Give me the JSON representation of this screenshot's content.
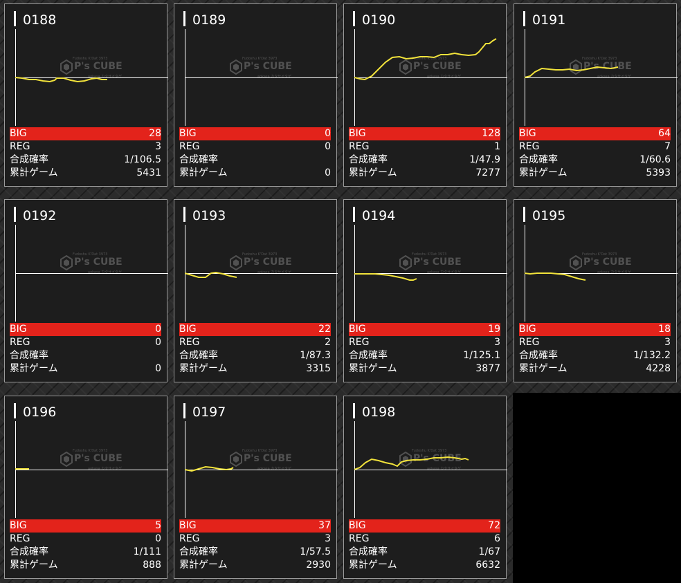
{
  "labels": {
    "big": "BIG",
    "reg": "REG",
    "rate": "合成確率",
    "games": "累計ゲーム"
  },
  "watermark": {
    "top": "Fudoshu K'Dat 3973",
    "logo": "P's CUBE",
    "bottom": "aokasa カタサイタゲ"
  },
  "colors": {
    "big_bar": "#e3231b",
    "line": "#f2e33b",
    "card_bg": "#1d1d1d",
    "border": "#9a9a9a"
  },
  "machines": [
    {
      "number": "0188",
      "big": "28",
      "reg": "3",
      "rate": "1/106.5",
      "games": "5431",
      "trend": [
        [
          0,
          0
        ],
        [
          10,
          -1
        ],
        [
          20,
          -3
        ],
        [
          30,
          -3
        ],
        [
          40,
          -5
        ],
        [
          50,
          -6
        ],
        [
          57,
          -4
        ],
        [
          60,
          -1
        ],
        [
          70,
          -1
        ],
        [
          80,
          -4
        ],
        [
          90,
          -6
        ],
        [
          100,
          -5
        ],
        [
          110,
          -2
        ],
        [
          118,
          -1
        ],
        [
          125,
          -3
        ],
        [
          133,
          -3
        ]
      ]
    },
    {
      "number": "0189",
      "big": "0",
      "reg": "0",
      "rate": "",
      "games": "0",
      "trend": []
    },
    {
      "number": "0190",
      "big": "128",
      "reg": "1",
      "rate": "1/47.9",
      "games": "7277",
      "trend": [
        [
          0,
          0
        ],
        [
          8,
          -2
        ],
        [
          15,
          -3
        ],
        [
          25,
          2
        ],
        [
          35,
          12
        ],
        [
          45,
          22
        ],
        [
          55,
          29
        ],
        [
          65,
          30
        ],
        [
          75,
          27
        ],
        [
          85,
          28
        ],
        [
          95,
          30
        ],
        [
          105,
          30
        ],
        [
          115,
          29
        ],
        [
          125,
          33
        ],
        [
          135,
          33
        ],
        [
          145,
          35
        ],
        [
          155,
          33
        ],
        [
          165,
          32
        ],
        [
          175,
          33
        ],
        [
          180,
          37
        ],
        [
          185,
          43
        ],
        [
          190,
          49
        ],
        [
          195,
          49
        ],
        [
          200,
          53
        ],
        [
          205,
          56
        ]
      ]
    },
    {
      "number": "0191",
      "big": "64",
      "reg": "7",
      "rate": "1/60.6",
      "games": "5393",
      "trend": [
        [
          0,
          0
        ],
        [
          8,
          2
        ],
        [
          15,
          8
        ],
        [
          25,
          13
        ],
        [
          35,
          12
        ],
        [
          45,
          11
        ],
        [
          55,
          11
        ],
        [
          65,
          12
        ],
        [
          75,
          10
        ],
        [
          85,
          11
        ],
        [
          95,
          13
        ],
        [
          105,
          15
        ],
        [
          115,
          14
        ],
        [
          125,
          13
        ],
        [
          135,
          15
        ]
      ]
    },
    {
      "number": "0192",
      "big": "0",
      "reg": "0",
      "rate": "",
      "games": "0",
      "trend": []
    },
    {
      "number": "0193",
      "big": "22",
      "reg": "2",
      "rate": "1/87.3",
      "games": "3315",
      "trend": [
        [
          0,
          0
        ],
        [
          10,
          -3
        ],
        [
          20,
          -6
        ],
        [
          30,
          -6
        ],
        [
          38,
          0
        ],
        [
          45,
          1
        ],
        [
          55,
          -1
        ],
        [
          65,
          -4
        ],
        [
          75,
          -6
        ]
      ]
    },
    {
      "number": "0194",
      "big": "19",
      "reg": "3",
      "rate": "1/125.1",
      "games": "3877",
      "trend": [
        [
          0,
          -1
        ],
        [
          10,
          -1
        ],
        [
          20,
          -1
        ],
        [
          30,
          -1
        ],
        [
          40,
          -2
        ],
        [
          50,
          -3
        ],
        [
          60,
          -5
        ],
        [
          70,
          -7
        ],
        [
          80,
          -10
        ],
        [
          85,
          -10
        ],
        [
          90,
          -8
        ]
      ]
    },
    {
      "number": "0195",
      "big": "18",
      "reg": "3",
      "rate": "1/132.2",
      "games": "4228",
      "trend": [
        [
          0,
          0
        ],
        [
          8,
          -1
        ],
        [
          18,
          0
        ],
        [
          28,
          0
        ],
        [
          38,
          0
        ],
        [
          48,
          -1
        ],
        [
          58,
          -2
        ],
        [
          68,
          -5
        ],
        [
          78,
          -8
        ],
        [
          88,
          -10
        ]
      ]
    },
    {
      "number": "0196",
      "big": "5",
      "reg": "0",
      "rate": "1/111",
      "games": "888",
      "trend": [
        [
          0,
          1
        ],
        [
          10,
          1
        ],
        [
          20,
          1
        ]
      ]
    },
    {
      "number": "0197",
      "big": "37",
      "reg": "3",
      "rate": "1/57.5",
      "games": "2930",
      "trend": [
        [
          0,
          0
        ],
        [
          10,
          -2
        ],
        [
          20,
          1
        ],
        [
          30,
          4
        ],
        [
          40,
          3
        ],
        [
          50,
          1
        ],
        [
          60,
          0
        ],
        [
          67,
          1
        ],
        [
          70,
          3
        ]
      ]
    },
    {
      "number": "0198",
      "big": "72",
      "reg": "6",
      "rate": "1/67",
      "games": "6632",
      "trend": [
        [
          0,
          0
        ],
        [
          8,
          3
        ],
        [
          16,
          10
        ],
        [
          25,
          15
        ],
        [
          35,
          13
        ],
        [
          45,
          10
        ],
        [
          55,
          8
        ],
        [
          62,
          5
        ],
        [
          68,
          11
        ],
        [
          75,
          13
        ],
        [
          85,
          14
        ],
        [
          95,
          14
        ],
        [
          105,
          15
        ],
        [
          115,
          17
        ],
        [
          125,
          17
        ],
        [
          135,
          18
        ],
        [
          145,
          17
        ],
        [
          155,
          15
        ],
        [
          160,
          16
        ],
        [
          165,
          14
        ]
      ]
    }
  ]
}
